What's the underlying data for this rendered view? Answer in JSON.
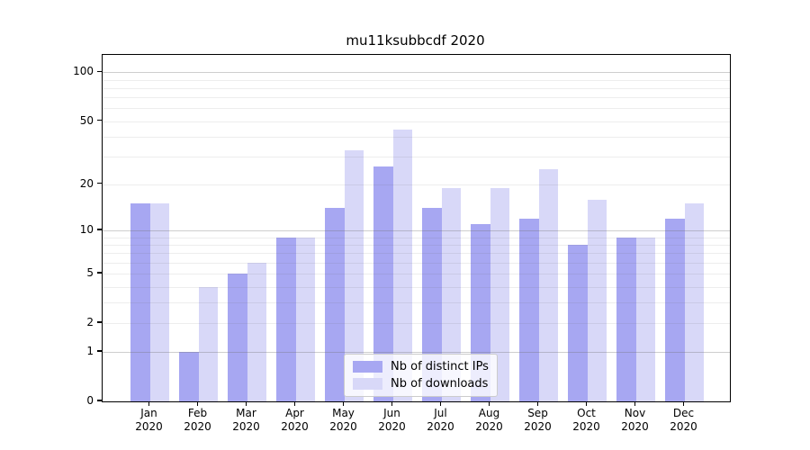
{
  "chart_data": {
    "type": "bar",
    "title": "mu11ksubbcdf 2020",
    "categories": [
      "Jan",
      "Feb",
      "Mar",
      "Apr",
      "May",
      "Jun",
      "Jul",
      "Aug",
      "Sep",
      "Oct",
      "Nov",
      "Dec"
    ],
    "year_label": "2020",
    "series": [
      {
        "name": "Nb of distinct IPs",
        "color": "#a7a7f2",
        "values": [
          15,
          1,
          5,
          9,
          14,
          26,
          14,
          11,
          12,
          8,
          9,
          12
        ]
      },
      {
        "name": "Nb of downloads",
        "color": "#d8d8f8",
        "values": [
          15,
          4,
          6,
          9,
          33,
          44,
          19,
          19,
          25,
          16,
          9,
          15
        ]
      }
    ],
    "xlabel": "",
    "ylabel": "",
    "yscale": "log10(value+1), includes 0 at baseline",
    "ylim": [
      0,
      128
    ],
    "yticks": [
      0,
      1,
      2,
      5,
      10,
      20,
      50,
      100
    ],
    "minor_gridlines": [
      2,
      3,
      4,
      5,
      6,
      7,
      8,
      9,
      20,
      30,
      40,
      50,
      60,
      70,
      80,
      90
    ],
    "major_gridlines": [
      1,
      10,
      100
    ],
    "grid": true,
    "legend_position": "lower center",
    "legend_labels": [
      "Nb of distinct IPs",
      "Nb of downloads"
    ]
  }
}
